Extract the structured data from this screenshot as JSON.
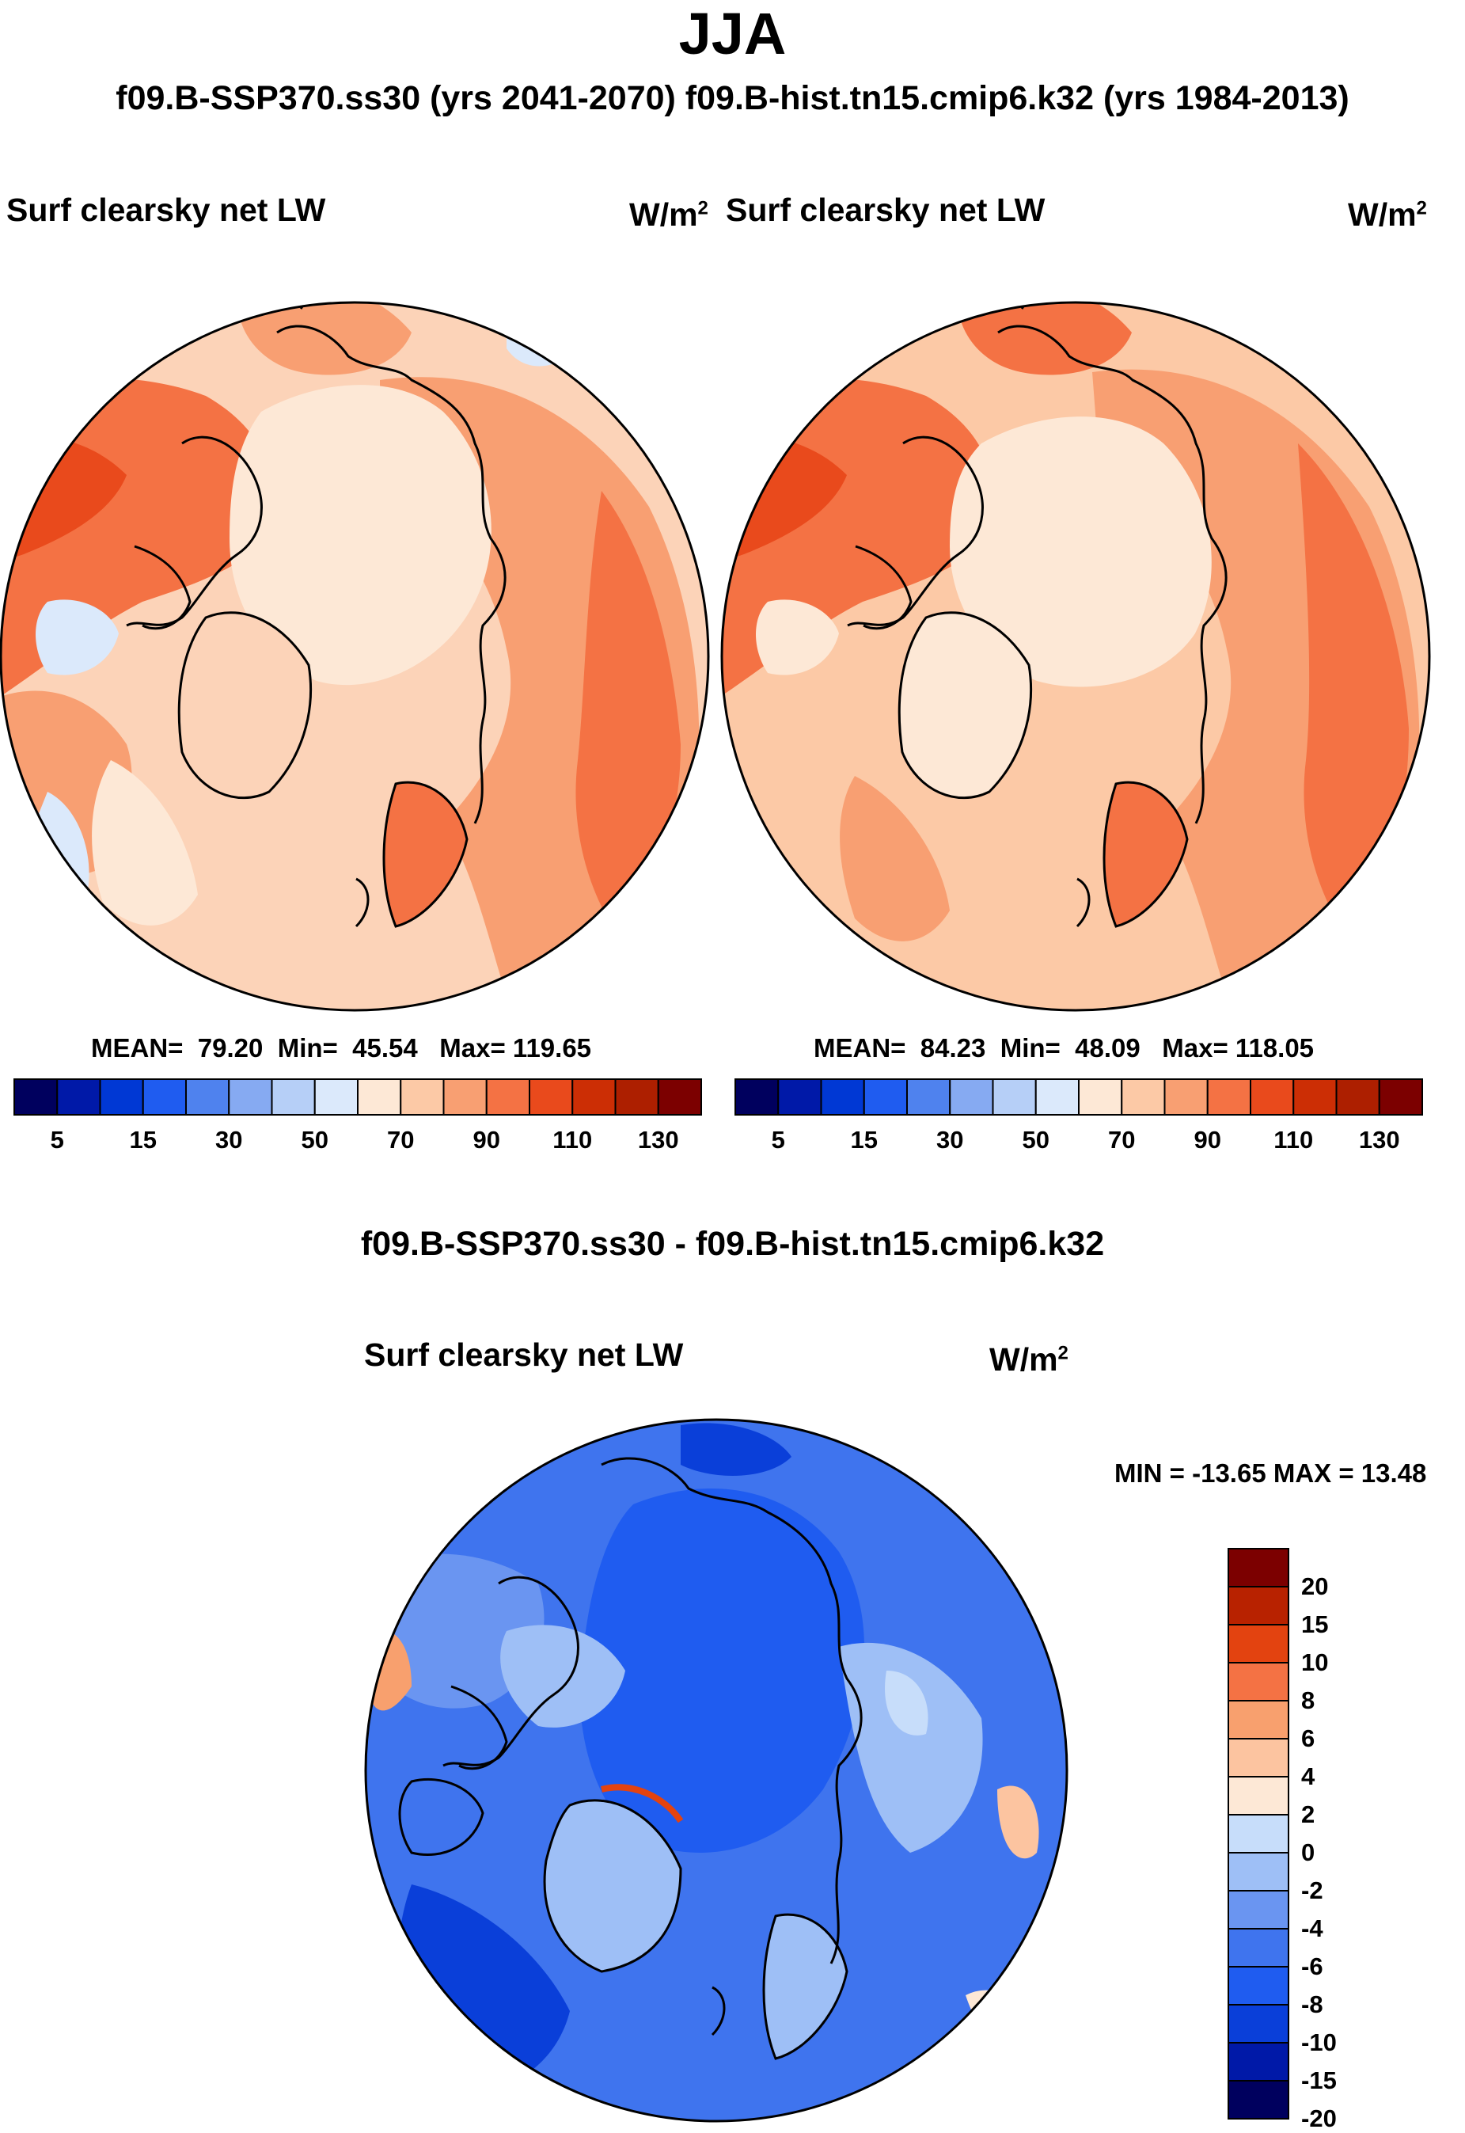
{
  "title": "JJA",
  "subtitle": "f09.B-SSP370.ss30 (yrs 2041-2070)  f09.B-hist.tn15.cmip6.k32 (yrs 1984-2013)",
  "panels": [
    {
      "variable": "Surf clearsky net LW",
      "units_base": "W/m",
      "units_exp": "2",
      "stats": {
        "mean_label": "MEAN=",
        "mean": "79.20",
        "min_label": "Min=",
        "min": "45.54",
        "max_label": "Max=",
        "max": "119.65"
      }
    },
    {
      "variable": "Surf clearsky net LW",
      "units_base": "W/m",
      "units_exp": "2",
      "stats": {
        "mean_label": "MEAN=",
        "mean": "84.23",
        "min_label": "Min=",
        "min": "48.09",
        "max_label": "Max=",
        "max": "118.05"
      }
    }
  ],
  "diff_title": "f09.B-SSP370.ss30 - f09.B-hist.tn15.cmip6.k32",
  "diff_panel": {
    "variable": "Surf clearsky net LW",
    "units_base": "W/m",
    "units_exp": "2",
    "minmax": "MIN = -13.65 MAX =  13.48"
  },
  "colors": {
    "abs_scale": [
      "#00005e",
      "#0019a8",
      "#0038d4",
      "#1f5cf0",
      "#4f82ee",
      "#86aaf2",
      "#b6cff7",
      "#dbe9fb",
      "#fde8d6",
      "#fcc9a6",
      "#f89f72",
      "#f47244",
      "#e94a1c",
      "#cc2e05",
      "#ad1f00",
      "#7c0000"
    ],
    "diff_scale": [
      "#00005e",
      "#0019a8",
      "#0a3fd9",
      "#1f5cf0",
      "#3f74ee",
      "#6a95f1",
      "#9ebff6",
      "#c7ddfa",
      "#fde8d6",
      "#fcc4a0",
      "#f8a06e",
      "#f47244",
      "#e34310",
      "#b82200",
      "#7c0000"
    ]
  },
  "chart_data": [
    {
      "type": "polar-contour-map",
      "projection": "north polar stereographic",
      "title": "Surf clearsky net LW",
      "units": "W/m2",
      "period": "f09.B-SSP370.ss30 (yrs 2041-2070)",
      "mean": 79.2,
      "min": 45.54,
      "max": 119.65,
      "colorbar_ticks": [
        "5",
        "15",
        "30",
        "50",
        "70",
        "90",
        "110",
        "130"
      ]
    },
    {
      "type": "polar-contour-map",
      "projection": "north polar stereographic",
      "title": "Surf clearsky net LW",
      "units": "W/m2",
      "period": "f09.B-hist.tn15.cmip6.k32 (yrs 1984-2013)",
      "mean": 84.23,
      "min": 48.09,
      "max": 118.05,
      "colorbar_ticks": [
        "5",
        "15",
        "30",
        "50",
        "70",
        "90",
        "110",
        "130"
      ]
    },
    {
      "type": "polar-contour-map",
      "projection": "north polar stereographic",
      "title": "Surf clearsky net LW",
      "units": "W/m2",
      "difference": "f09.B-SSP370.ss30 - f09.B-hist.tn15.cmip6.k32",
      "min": -13.65,
      "max": 13.48,
      "colorbar_ticks": [
        "20",
        "15",
        "10",
        "8",
        "6",
        "4",
        "2",
        "0",
        "-2",
        "-4",
        "-6",
        "-8",
        "-10",
        "-15",
        "-20"
      ]
    }
  ]
}
